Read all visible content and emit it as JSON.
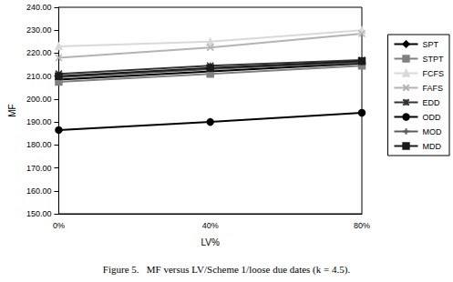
{
  "chart_data": {
    "type": "line",
    "title": "Figure 5.   MF versus LV/Scheme 1/loose due dates (k = 4.5).",
    "x_label": "LV%",
    "y_label": "MF",
    "categories": [
      "0%",
      "40%",
      "80%"
    ],
    "series": [
      {
        "name": "SPT",
        "color": "#000000",
        "marker": "diamond",
        "values": [
          208.5,
          212.0,
          215.5
        ]
      },
      {
        "name": "STPT",
        "color": "#808080",
        "marker": "square",
        "values": [
          207.5,
          211.0,
          214.5
        ]
      },
      {
        "name": "FCFS",
        "color": "#d9d9d9",
        "marker": "triangle",
        "values": [
          223.0,
          225.0,
          230.0
        ]
      },
      {
        "name": "FAFS",
        "color": "#b3b3b3",
        "marker": "x",
        "values": [
          218.0,
          222.5,
          228.5
        ]
      },
      {
        "name": "EDD",
        "color": "#333333",
        "marker": "star",
        "values": [
          211.0,
          214.5,
          217.0
        ]
      },
      {
        "name": "ODD",
        "color": "#000000",
        "marker": "circle",
        "values": [
          186.5,
          190.0,
          194.0
        ]
      },
      {
        "name": "MOD",
        "color": "#595959",
        "marker": "plus",
        "values": [
          209.5,
          213.0,
          216.0
        ]
      },
      {
        "name": "MDD",
        "color": "#1a1a1a",
        "marker": "dash",
        "values": [
          210.0,
          213.5,
          216.5
        ]
      }
    ],
    "ylim": [
      150,
      240
    ],
    "yticks": [
      {
        "value": 150,
        "label": "150.00"
      },
      {
        "value": 160,
        "label": "160.00"
      },
      {
        "value": 170,
        "label": "170.00"
      },
      {
        "value": 180,
        "label": "180.00"
      },
      {
        "value": 190,
        "label": "190.00"
      },
      {
        "value": 200,
        "label": "200.00"
      },
      {
        "value": 210,
        "label": "210.00"
      },
      {
        "value": 220,
        "label": "220.00"
      },
      {
        "value": 230,
        "label": "230.00"
      },
      {
        "value": 240,
        "label": "240.00"
      }
    ],
    "grid": false,
    "legend": "right"
  }
}
